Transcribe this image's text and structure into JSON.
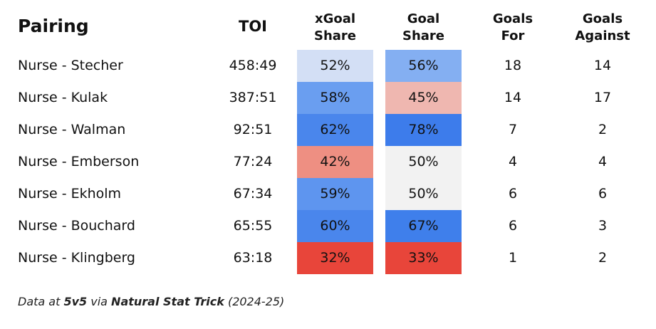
{
  "header": [
    [
      "Pairing"
    ],
    [
      "TOI"
    ],
    [
      "xGoal",
      "Share"
    ],
    [
      "Goal",
      "Share"
    ],
    [
      "Goals",
      "For"
    ],
    [
      "Goals",
      "Against"
    ]
  ],
  "rows": [
    [
      "Nurse - Stecher",
      "458:49",
      "52%",
      "56%",
      "18",
      "14"
    ],
    [
      "Nurse - Kulak",
      "387:51",
      "58%",
      "45%",
      "14",
      "17"
    ],
    [
      "Nurse - Walman",
      "92:51",
      "62%",
      "78%",
      "7",
      "2"
    ],
    [
      "Nurse - Emberson",
      "77:24",
      "42%",
      "50%",
      "4",
      "4"
    ],
    [
      "Nurse - Ekholm",
      "67:34",
      "59%",
      "50%",
      "6",
      "6"
    ],
    [
      "Nurse - Bouchard",
      "65:55",
      "60%",
      "67%",
      "6",
      "3"
    ],
    [
      "Nurse - Klingberg",
      "63:18",
      "32%",
      "33%",
      "1",
      "2"
    ]
  ],
  "cell_colors": [
    [
      "#d3dff5",
      "#84aff2"
    ],
    [
      "#6a9ef0",
      "#efb7b0"
    ],
    [
      "#4a86ec",
      "#3d7ceb"
    ],
    [
      "#ee8f82",
      "#f2f2f2"
    ],
    [
      "#5e95ef",
      "#f2f2f2"
    ],
    [
      "#4a86ec",
      "#3f7feb"
    ],
    [
      "#e8453a",
      "#e8453a"
    ]
  ],
  "footnote": [
    "Data at ",
    "5v5",
    " via ",
    "Natural Stat Trick",
    " (2024-25)"
  ]
}
